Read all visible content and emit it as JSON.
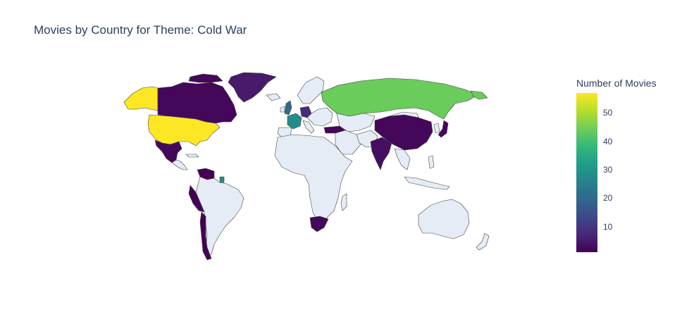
{
  "title": "Movies by Country for Theme: Cold War",
  "colorbar": {
    "title": "Number of Movies",
    "min": 1,
    "max": 57,
    "ticks": [
      "10",
      "20",
      "30",
      "40",
      "50"
    ],
    "colorscale": [
      "#440154",
      "#482878",
      "#3e4989",
      "#31688e",
      "#26828e",
      "#1f9e89",
      "#35b779",
      "#6ece58",
      "#b5de2b",
      "#fde725"
    ]
  },
  "map": {
    "land_color": "#e5ecf6",
    "border_color": "#444444",
    "countries": [
      {
        "name": "United States",
        "value": 57
      },
      {
        "name": "Russia",
        "value": 44
      },
      {
        "name": "France",
        "value": 28
      },
      {
        "name": "United Kingdom",
        "value": 20
      },
      {
        "name": "Germany",
        "value": 8
      },
      {
        "name": "Canada",
        "value": 2
      },
      {
        "name": "Mexico",
        "value": 2
      },
      {
        "name": "China",
        "value": 2
      },
      {
        "name": "India",
        "value": 3
      },
      {
        "name": "Japan",
        "value": 2
      },
      {
        "name": "South Africa",
        "value": 2
      },
      {
        "name": "Peru",
        "value": 1
      },
      {
        "name": "Chile",
        "value": 1
      },
      {
        "name": "Venezuela",
        "value": 1
      },
      {
        "name": "Turkey",
        "value": 2
      },
      {
        "name": "Greenland",
        "value": 5
      },
      {
        "name": "French Guiana",
        "value": 28
      }
    ]
  }
}
